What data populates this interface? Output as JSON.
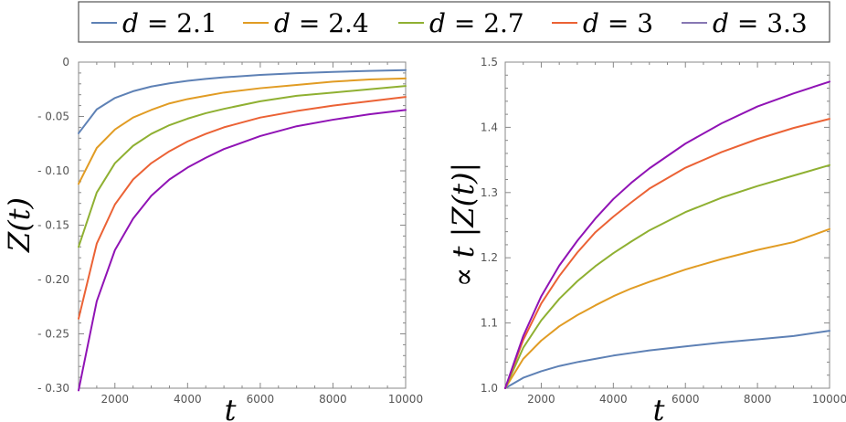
{
  "legend": {
    "entries": [
      {
        "label": "d = 2.1",
        "color": "#5E81B5"
      },
      {
        "label": "d = 2.4",
        "color": "#E19C24"
      },
      {
        "label": "d = 2.7",
        "color": "#8FB032"
      },
      {
        "label": "d = 3",
        "color": "#EB6235"
      },
      {
        "label": "d = 3.3",
        "color": "#8778B3"
      }
    ]
  },
  "chart_data": [
    {
      "type": "line",
      "title": "",
      "xlabel": "t",
      "ylabel": "Z(t)",
      "xlim": [
        1000,
        10000
      ],
      "ylim": [
        -0.3,
        0
      ],
      "xticks": [
        2000,
        4000,
        6000,
        8000,
        10000
      ],
      "xtick_labels": [
        "2000",
        "4000",
        "6000",
        "8000",
        "10000"
      ],
      "yticks": [
        0,
        -0.05,
        -0.1,
        -0.15,
        -0.2,
        -0.25,
        -0.3
      ],
      "ytick_labels": [
        "0",
        "- 0.05",
        "- 0.10",
        "- 0.15",
        "- 0.20",
        "- 0.25",
        "- 0.30"
      ],
      "x": [
        1000,
        1500,
        2000,
        2500,
        3000,
        3500,
        4000,
        4500,
        5000,
        6000,
        7000,
        8000,
        9000,
        10000
      ],
      "series": [
        {
          "name": "d = 2.1",
          "color": "#5E81B5",
          "values": [
            -0.0655,
            -0.0435,
            -0.033,
            -0.0268,
            -0.0225,
            -0.0195,
            -0.0172,
            -0.0154,
            -0.014,
            -0.0118,
            -0.0102,
            -0.009,
            -0.0081,
            -0.0073
          ]
        },
        {
          "name": "d = 2.4",
          "color": "#E19C24",
          "values": [
            -0.112,
            -0.079,
            -0.062,
            -0.051,
            -0.044,
            -0.038,
            -0.034,
            -0.031,
            -0.028,
            -0.024,
            -0.021,
            -0.018,
            -0.016,
            -0.015
          ]
        },
        {
          "name": "d = 2.7",
          "color": "#8FB032",
          "values": [
            -0.17,
            -0.12,
            -0.093,
            -0.077,
            -0.066,
            -0.058,
            -0.052,
            -0.047,
            -0.043,
            -0.036,
            -0.031,
            -0.028,
            -0.025,
            -0.022
          ]
        },
        {
          "name": "d = 3",
          "color": "#EB6235",
          "values": [
            -0.236,
            -0.167,
            -0.131,
            -0.108,
            -0.093,
            -0.082,
            -0.073,
            -0.066,
            -0.06,
            -0.051,
            -0.045,
            -0.04,
            -0.036,
            -0.032
          ]
        },
        {
          "name": "d = 3.3",
          "color": "#9013B5",
          "values": [
            -0.302,
            -0.22,
            -0.173,
            -0.144,
            -0.123,
            -0.108,
            -0.097,
            -0.088,
            -0.08,
            -0.068,
            -0.059,
            -0.053,
            -0.048,
            -0.044
          ]
        }
      ]
    },
    {
      "type": "line",
      "title": "",
      "xlabel": "t",
      "ylabel": "∝ t |Z(t)|",
      "xlim": [
        1000,
        10000
      ],
      "ylim": [
        1.0,
        1.5
      ],
      "xticks": [
        2000,
        4000,
        6000,
        8000,
        10000
      ],
      "xtick_labels": [
        "2000",
        "4000",
        "6000",
        "8000",
        "10000"
      ],
      "yticks": [
        1.0,
        1.1,
        1.2,
        1.3,
        1.4,
        1.5
      ],
      "ytick_labels": [
        "1.0",
        "1.1",
        "1.2",
        "1.3",
        "1.4",
        "1.5"
      ],
      "x": [
        1000,
        1500,
        2000,
        2500,
        3000,
        3500,
        4000,
        4500,
        5000,
        6000,
        7000,
        8000,
        9000,
        10000
      ],
      "series": [
        {
          "name": "d = 2.1",
          "color": "#5E81B5",
          "values": [
            1.0,
            1.016,
            1.026,
            1.034,
            1.04,
            1.045,
            1.05,
            1.054,
            1.058,
            1.064,
            1.07,
            1.075,
            1.08,
            1.088
          ]
        },
        {
          "name": "d = 2.4",
          "color": "#E19C24",
          "values": [
            1.0,
            1.045,
            1.073,
            1.095,
            1.112,
            1.127,
            1.141,
            1.153,
            1.163,
            1.182,
            1.198,
            1.212,
            1.224,
            1.244
          ]
        },
        {
          "name": "d = 2.7",
          "color": "#8FB032",
          "values": [
            1.0,
            1.062,
            1.104,
            1.137,
            1.164,
            1.187,
            1.207,
            1.225,
            1.242,
            1.27,
            1.292,
            1.31,
            1.326,
            1.342
          ]
        },
        {
          "name": "d = 3",
          "color": "#EB6235",
          "values": [
            1.0,
            1.074,
            1.13,
            1.172,
            1.208,
            1.239,
            1.263,
            1.285,
            1.306,
            1.338,
            1.362,
            1.382,
            1.399,
            1.413
          ]
        },
        {
          "name": "d = 3.3",
          "color": "#9013B5",
          "values": [
            1.0,
            1.08,
            1.141,
            1.188,
            1.226,
            1.26,
            1.29,
            1.315,
            1.337,
            1.375,
            1.406,
            1.432,
            1.452,
            1.47
          ]
        }
      ]
    }
  ]
}
